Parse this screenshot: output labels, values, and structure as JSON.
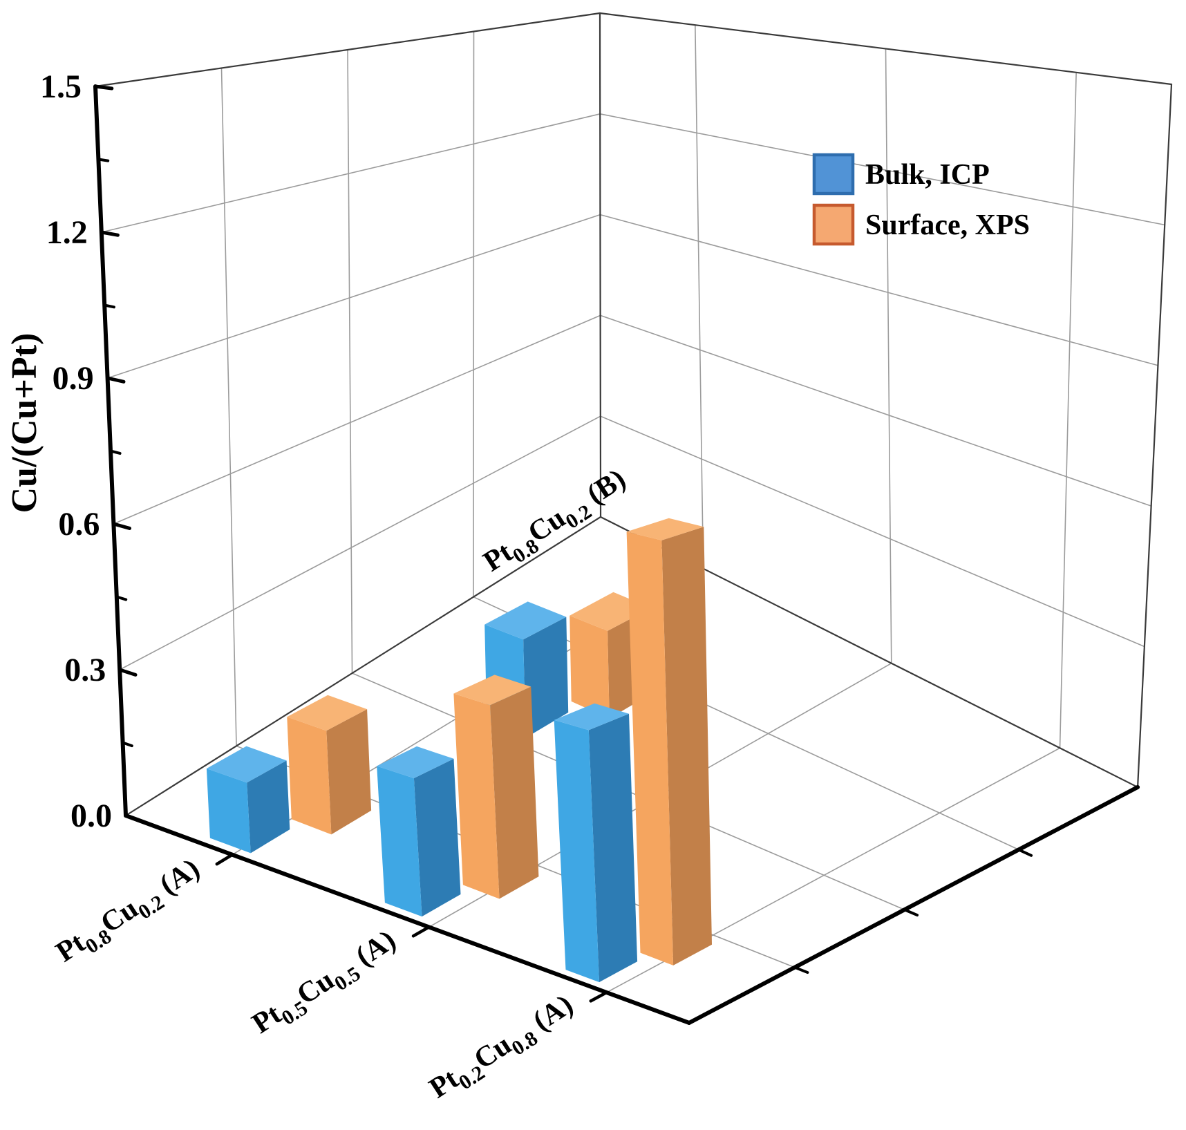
{
  "chart_data": {
    "type": "bar",
    "projection": "3d",
    "title": "",
    "xlabel": "",
    "ylabel": "Cu/(Cu+Pt)",
    "ylim": [
      0,
      1.5
    ],
    "ytick_step_major": 0.3,
    "ytick_step_minor": 0.15,
    "ytick_labels": [
      "0.0",
      "0.3",
      "0.6",
      "0.9",
      "1.2",
      "1.5"
    ],
    "categories": [
      "Pt0.8Cu0.2 (A)",
      "Pt0.5Cu0.5 (A)",
      "Pt0.2Cu0.8 (A)",
      "Pt0.8Cu0.2 (B)"
    ],
    "category_label_parts": [
      [
        [
          "Pt",
          false
        ],
        [
          "0.8",
          true
        ],
        [
          "Cu",
          false
        ],
        [
          "0.2",
          true
        ],
        [
          " (A)",
          false
        ]
      ],
      [
        [
          "Pt",
          false
        ],
        [
          "0.5",
          true
        ],
        [
          "Cu",
          false
        ],
        [
          "0.5",
          true
        ],
        [
          " (A)",
          false
        ]
      ],
      [
        [
          "Pt",
          false
        ],
        [
          "0.2",
          true
        ],
        [
          "Cu",
          false
        ],
        [
          "0.8",
          true
        ],
        [
          " (A)",
          false
        ]
      ],
      [
        [
          "Pt",
          false
        ],
        [
          "0.8",
          true
        ],
        [
          "Cu",
          false
        ],
        [
          "0.2",
          true
        ],
        [
          " (B)",
          false
        ]
      ]
    ],
    "series": [
      {
        "name": "Bulk, ICP",
        "values": [
          0.14,
          0.26,
          0.45,
          0.22
        ],
        "color_front": "#3FA7E4",
        "color_side": "#2D7CB4",
        "color_top": "#5FB4EB"
      },
      {
        "name": "Surface, XPS",
        "values": [
          0.21,
          0.37,
          0.77,
          0.2
        ],
        "color_front": "#F5A55F",
        "color_side": "#C28049",
        "color_top": "#F8B475"
      }
    ],
    "legend_position": "top-right",
    "grid": true,
    "background": "#FFFFFF"
  },
  "legend": {
    "items": [
      {
        "label": "Bulk, ICP",
        "fill": "#5193D6",
        "border": "#2E6DAE"
      },
      {
        "label": "Surface, XPS",
        "fill": "#F5A871",
        "border": "#C65A2E"
      }
    ]
  },
  "axis_colors": {
    "axis": "#000000",
    "grid": "#9B9B9B",
    "wall_edge": "#3A3A3A"
  }
}
